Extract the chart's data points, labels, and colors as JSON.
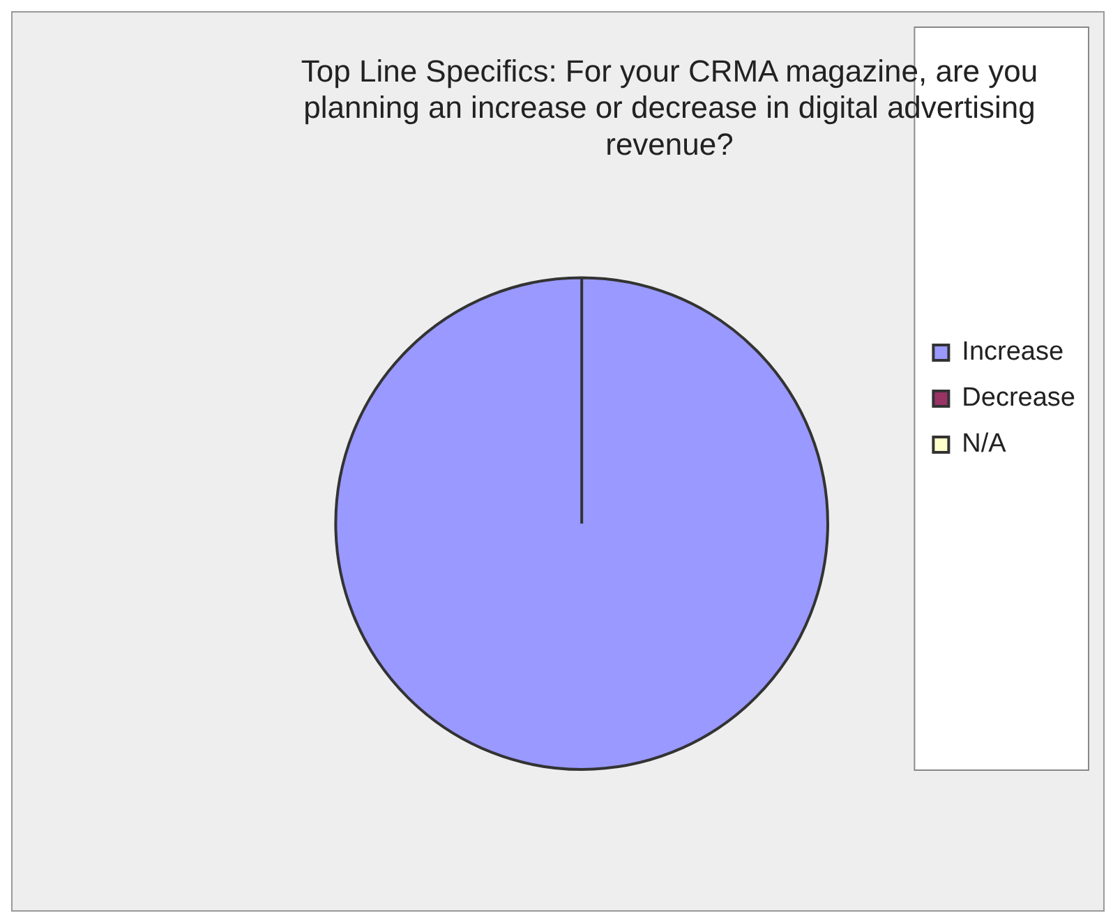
{
  "chart_data": {
    "type": "pie",
    "title": "Top Line Specifics: For your CRMA magazine, are you planning an increase or decrease in digital advertising revenue?",
    "categories": [
      "Increase",
      "Decrease",
      "N/A"
    ],
    "values": [
      100,
      0,
      0
    ],
    "colors": [
      "#9999ff",
      "#993366",
      "#ffffcc"
    ],
    "legend": "right"
  }
}
